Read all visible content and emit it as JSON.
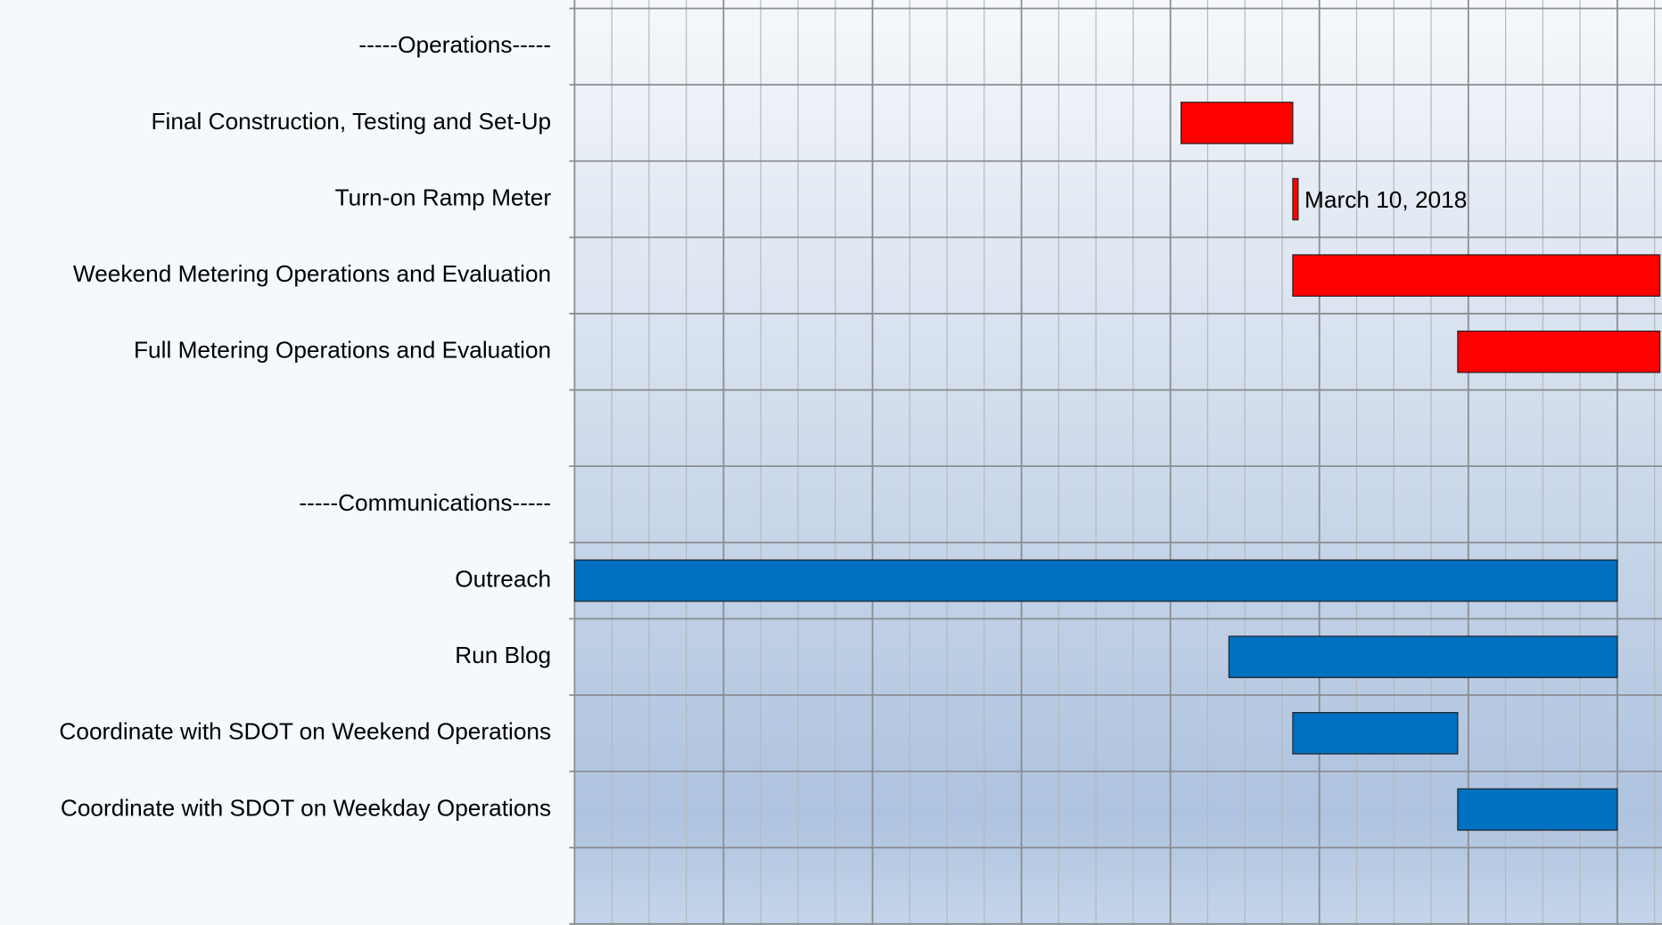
{
  "chart_data": {
    "type": "gantt",
    "categories": [
      "-----Operations-----",
      "Final Construction, Testing and Set-Up",
      "Turn-on Ramp Meter",
      "Weekend Metering Operations and Evaluation",
      "Full Metering Operations and Evaluation",
      null,
      "-----Communications-----",
      "Outreach",
      "Run Blog",
      "Coordinate with SDOT on Weekend Operations",
      "Coordinate with SDOT on Weekday Operations",
      null
    ],
    "start": [
      null,
      114,
      135,
      135,
      166,
      null,
      null,
      0,
      123,
      135,
      166,
      null
    ],
    "end": [
      null,
      135,
      136,
      204,
      204,
      null,
      null,
      196,
      196,
      166,
      196,
      null
    ],
    "colors": [
      null,
      "#ff0000",
      "#ff0000",
      "#ff0000",
      "#ff0000",
      null,
      null,
      "#0070c0",
      "#0070c0",
      "#0070c0",
      "#0070c0",
      null
    ],
    "annotations": [
      {
        "row": 2,
        "text": "March 10, 2018"
      }
    ],
    "xlim": [
      0,
      204
    ],
    "xticks_major": [
      0,
      28,
      56,
      84,
      112,
      140,
      168,
      196
    ],
    "xticks_minor": [
      7,
      14,
      21,
      35,
      42,
      49,
      63,
      70,
      77,
      91,
      98,
      105,
      119,
      126,
      133,
      147,
      154,
      161,
      175,
      182,
      189,
      203
    ],
    "grid": true
  }
}
